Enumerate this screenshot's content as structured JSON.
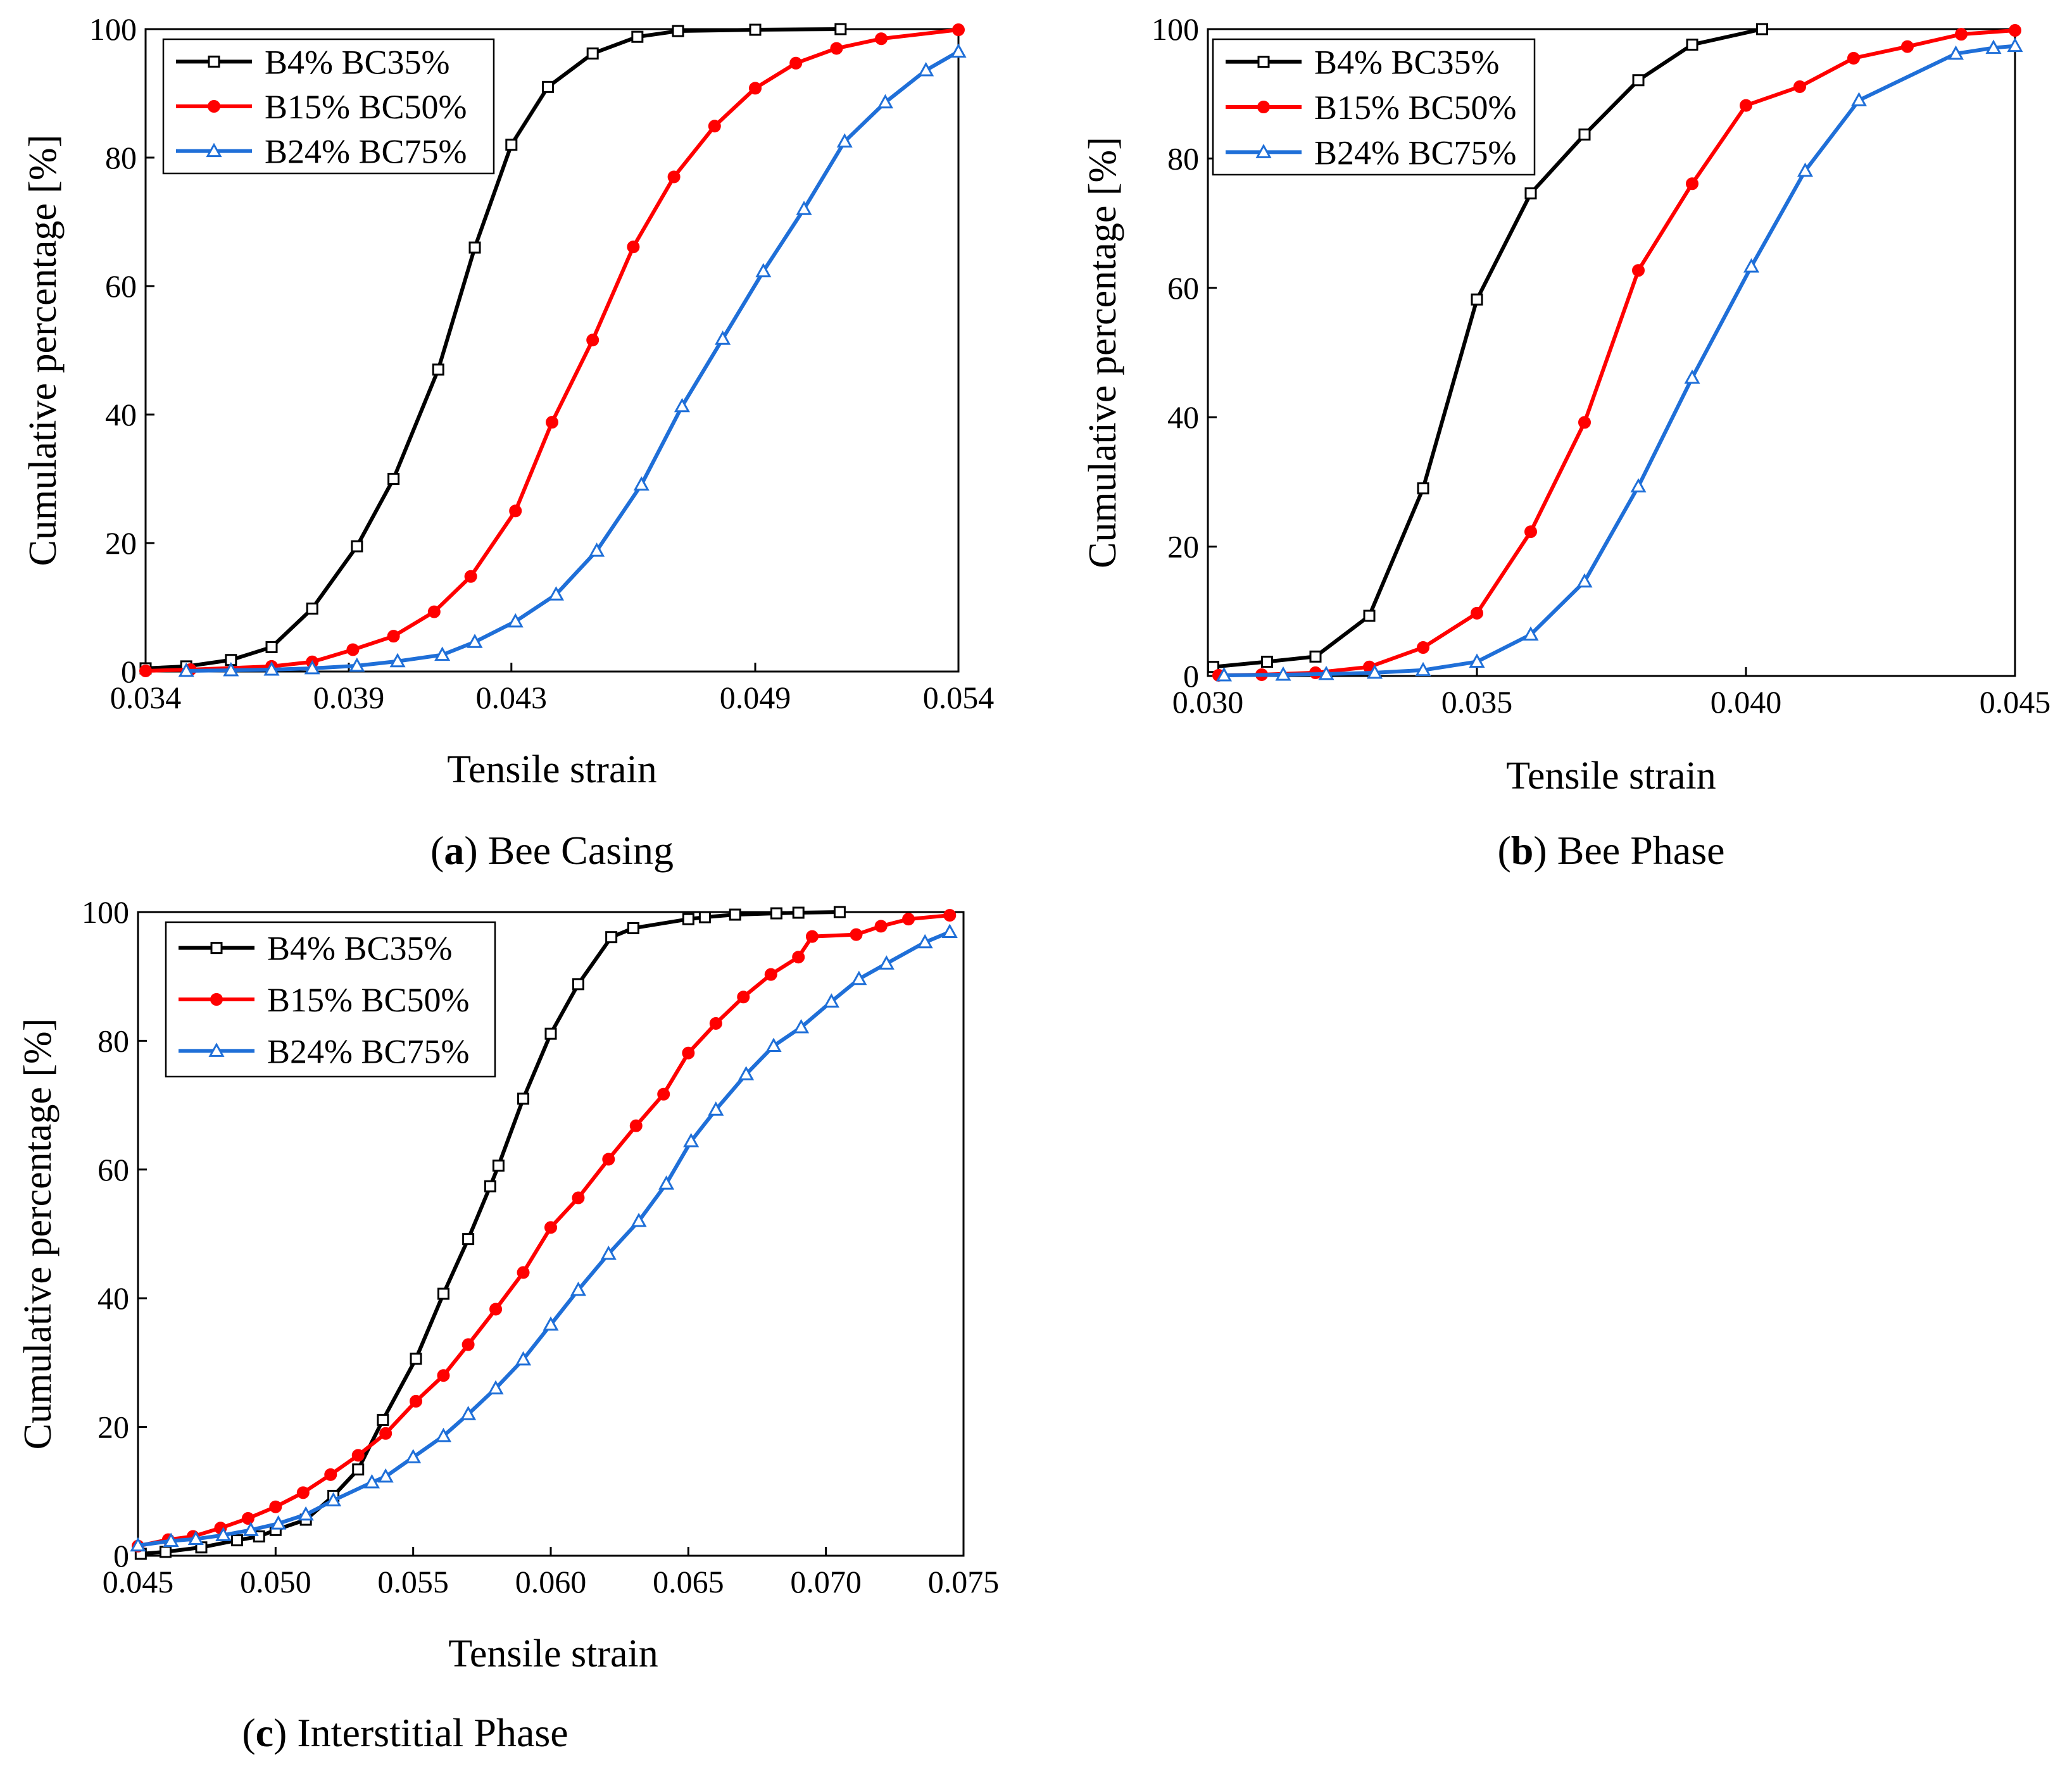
{
  "figure": {
    "series_colors": [
      "#000000",
      "#ff0000",
      "#1f6fd8"
    ],
    "series_markers": [
      "square",
      "circle",
      "triangle"
    ]
  },
  "chart_data": [
    {
      "type": "line",
      "panel_letter": "a",
      "panel_label": "(a) Bee Casing",
      "panel_name": "Bee Casing",
      "xlabel": "Tensile strain",
      "ylabel": "Cumulative percentage [%]",
      "xlim": [
        0.034,
        0.054
      ],
      "ylim": [
        0,
        100
      ],
      "xticks": [
        0.034,
        0.039,
        0.043,
        0.049,
        0.054
      ],
      "xtick_labels": [
        "0.034",
        "0.039",
        "0.043",
        "0.049",
        "0.054"
      ],
      "yticks": [
        0,
        20,
        40,
        60,
        80,
        100
      ],
      "ytick_labels": [
        "0",
        "20",
        "40",
        "60",
        "80",
        "100"
      ],
      "legend_position": "top-left",
      "series": [
        {
          "name": "B4% BC35%",
          "x": [
            0.034,
            0.035,
            0.0361,
            0.0371,
            0.0381,
            0.0392,
            0.0401,
            0.0412,
            0.0421,
            0.043,
            0.0439,
            0.045,
            0.0461,
            0.0471,
            0.049,
            0.0511
          ],
          "y": [
            0.5,
            0.8,
            1.8,
            3.8,
            9.8,
            19.5,
            30,
            47,
            66,
            82,
            91,
            96.2,
            98.8,
            99.7,
            99.9,
            100
          ]
        },
        {
          "name": "B15% BC50%",
          "x": [
            0.034,
            0.0351,
            0.0371,
            0.0381,
            0.0391,
            0.0401,
            0.0411,
            0.042,
            0.0431,
            0.044,
            0.045,
            0.046,
            0.047,
            0.048,
            0.049,
            0.05,
            0.051,
            0.0521,
            0.054
          ],
          "y": [
            0.1,
            0.3,
            0.8,
            1.5,
            3.4,
            5.5,
            9.3,
            14.8,
            25,
            38.8,
            51.6,
            66.1,
            77,
            84.9,
            90.8,
            94.7,
            97,
            98.5,
            99.9
          ]
        },
        {
          "name": "B24% BC75%",
          "x": [
            0.035,
            0.0361,
            0.0371,
            0.0381,
            0.0392,
            0.0402,
            0.0413,
            0.0421,
            0.0431,
            0.0441,
            0.0451,
            0.0462,
            0.0472,
            0.0482,
            0.0492,
            0.0502,
            0.0512,
            0.0522,
            0.0532,
            0.054
          ],
          "y": [
            0.1,
            0.2,
            0.3,
            0.5,
            0.9,
            1.6,
            2.6,
            4.6,
            7.8,
            12,
            18.8,
            29.1,
            41.3,
            51.8,
            62.3,
            72,
            82.5,
            88.6,
            93.6,
            96.5
          ]
        }
      ]
    },
    {
      "type": "line",
      "panel_letter": "b",
      "panel_label": "(b) Bee Phase",
      "panel_name": "Bee Phase",
      "xlabel": "Tensile strain",
      "ylabel": "Cumulative percentage [%]",
      "xlim": [
        0.03,
        0.045
      ],
      "ylim": [
        0,
        100
      ],
      "xticks": [
        0.03,
        0.035,
        0.04,
        0.045
      ],
      "xtick_labels": [
        "0.030",
        "0.035",
        "0.040",
        "0.045"
      ],
      "yticks": [
        0,
        20,
        40,
        60,
        80,
        100
      ],
      "ytick_labels": [
        "0",
        "20",
        "40",
        "60",
        "80",
        "100"
      ],
      "legend_position": "top-left",
      "series": [
        {
          "name": "B4% BC35%",
          "x": [
            0.0301,
            0.0311,
            0.032,
            0.033,
            0.034,
            0.035,
            0.036,
            0.037,
            0.038,
            0.039,
            0.0403
          ],
          "y": [
            1.4,
            2.2,
            3,
            9.3,
            29,
            58.2,
            74.6,
            83.7,
            92.1,
            97.6,
            100
          ]
        },
        {
          "name": "B15% BC50%",
          "x": [
            0.0302,
            0.031,
            0.032,
            0.033,
            0.034,
            0.035,
            0.036,
            0.037,
            0.038,
            0.039,
            0.04,
            0.041,
            0.042,
            0.043,
            0.044,
            0.045
          ],
          "y": [
            0.1,
            0.2,
            0.5,
            1.4,
            4.4,
            9.7,
            22.3,
            39.2,
            62.7,
            76.1,
            88.2,
            91.1,
            95.5,
            97.3,
            99.2,
            99.8
          ]
        },
        {
          "name": "B24% BC75%",
          "x": [
            0.0303,
            0.0314,
            0.0322,
            0.0331,
            0.034,
            0.035,
            0.036,
            0.037,
            0.038,
            0.039,
            0.0401,
            0.0411,
            0.0421,
            0.0439,
            0.0446,
            0.045
          ],
          "y": [
            0.1,
            0.2,
            0.3,
            0.5,
            0.9,
            2.2,
            6.4,
            14.6,
            29.3,
            46.1,
            63.3,
            78.1,
            89,
            96.2,
            97.1,
            97.4
          ]
        }
      ]
    },
    {
      "type": "line",
      "panel_letter": "c",
      "panel_label": "(c) Interstitial Phase",
      "panel_name": "Interstitial Phase",
      "xlabel": "Tensile strain",
      "ylabel": "Cumulative percentage [%]",
      "xlim": [
        0.045,
        0.075
      ],
      "ylim": [
        0,
        100
      ],
      "xticks": [
        0.045,
        0.05,
        0.055,
        0.06,
        0.065,
        0.07,
        0.075
      ],
      "xtick_labels": [
        "0.045",
        "0.050",
        "0.055",
        "0.060",
        "0.065",
        "0.070",
        "0.075"
      ],
      "yticks": [
        0,
        20,
        40,
        60,
        80,
        100
      ],
      "ytick_labels": [
        "0",
        "20",
        "40",
        "60",
        "80",
        "100"
      ],
      "legend_position": "top-left",
      "series": [
        {
          "name": "B4% BC35%",
          "x": [
            0.0451,
            0.046,
            0.0473,
            0.0486,
            0.0494,
            0.05,
            0.0511,
            0.0521,
            0.053,
            0.0539,
            0.0551,
            0.0561,
            0.057,
            0.0578,
            0.0581,
            0.059,
            0.06,
            0.061,
            0.0622,
            0.063,
            0.065,
            0.0656,
            0.0667,
            0.0682,
            0.069,
            0.0705
          ],
          "y": [
            0.3,
            0.6,
            1.3,
            2.4,
            3,
            4,
            5.6,
            9.3,
            13.4,
            21.1,
            30.6,
            40.7,
            49.2,
            57.4,
            60.6,
            71,
            81.1,
            88.8,
            96.1,
            97.5,
            98.9,
            99.2,
            99.6,
            99.8,
            99.9,
            100
          ]
        },
        {
          "name": "B15% BC50%",
          "x": [
            0.045,
            0.0461,
            0.047,
            0.048,
            0.049,
            0.05,
            0.051,
            0.052,
            0.053,
            0.054,
            0.0551,
            0.0561,
            0.057,
            0.058,
            0.059,
            0.06,
            0.061,
            0.0621,
            0.0631,
            0.0641,
            0.065,
            0.066,
            0.067,
            0.068,
            0.069,
            0.0695,
            0.0711,
            0.072,
            0.073,
            0.0745
          ],
          "y": [
            1.5,
            2.5,
            3,
            4.3,
            5.8,
            7.6,
            9.8,
            12.6,
            15.6,
            19,
            24,
            28,
            32.8,
            38.3,
            44,
            51,
            55.6,
            61.6,
            66.8,
            71.7,
            78.1,
            82.7,
            86.8,
            90.3,
            93,
            96.2,
            96.5,
            97.8,
            98.9,
            99.5
          ]
        },
        {
          "name": "B24% BC75%",
          "x": [
            0.045,
            0.0462,
            0.0471,
            0.0481,
            0.0491,
            0.0501,
            0.0511,
            0.0521,
            0.0535,
            0.054,
            0.055,
            0.0561,
            0.057,
            0.058,
            0.059,
            0.06,
            0.061,
            0.0621,
            0.0632,
            0.0642,
            0.0651,
            0.066,
            0.0671,
            0.0681,
            0.0691,
            0.0702,
            0.0712,
            0.0722,
            0.0736,
            0.0745
          ],
          "y": [
            1.6,
            2.3,
            2.6,
            3.2,
            4,
            5,
            6.4,
            8.6,
            11.4,
            12.3,
            15.3,
            18.6,
            22,
            26,
            30.5,
            35.9,
            41.3,
            46.9,
            52,
            57.8,
            64.4,
            69.3,
            74.8,
            79.2,
            82.1,
            86.1,
            89.6,
            92,
            95.3,
            96.9
          ]
        }
      ]
    }
  ]
}
